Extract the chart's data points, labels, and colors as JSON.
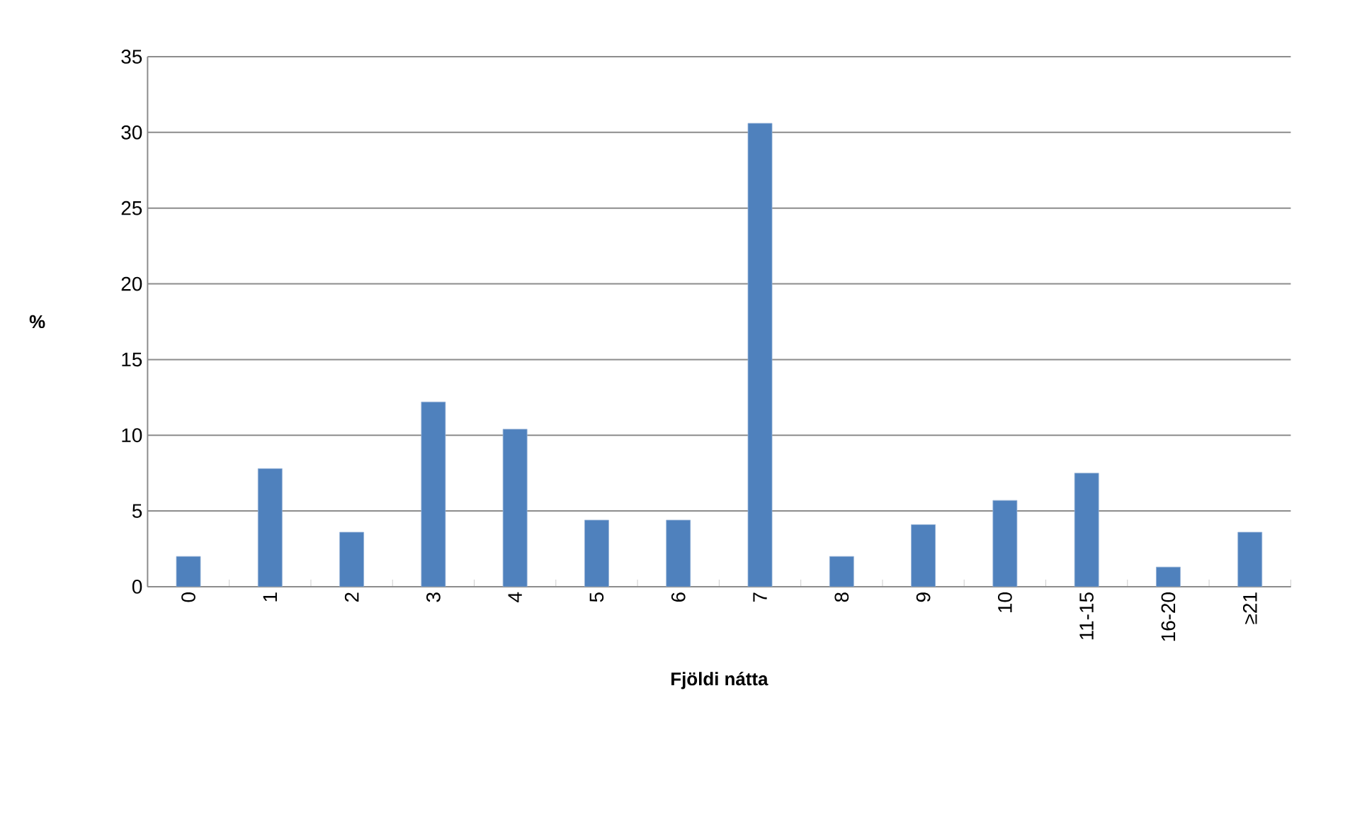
{
  "chart_data": {
    "type": "bar",
    "xlabel": "Fjöldi nátta",
    "ylabel": "%",
    "categories": [
      "0",
      "1",
      "2",
      "3",
      "4",
      "5",
      "6",
      "7",
      "8",
      "9",
      "10",
      "11-15",
      "16-20",
      "≥21"
    ],
    "values": [
      2.0,
      7.8,
      3.6,
      12.2,
      10.4,
      4.4,
      4.4,
      30.6,
      2.0,
      4.1,
      5.7,
      7.5,
      1.3,
      3.6
    ],
    "color": "#4f81bd",
    "ylim": [
      0,
      35
    ],
    "yticks": [
      0,
      5,
      10,
      15,
      20,
      25,
      30,
      35
    ],
    "grid": "y"
  }
}
